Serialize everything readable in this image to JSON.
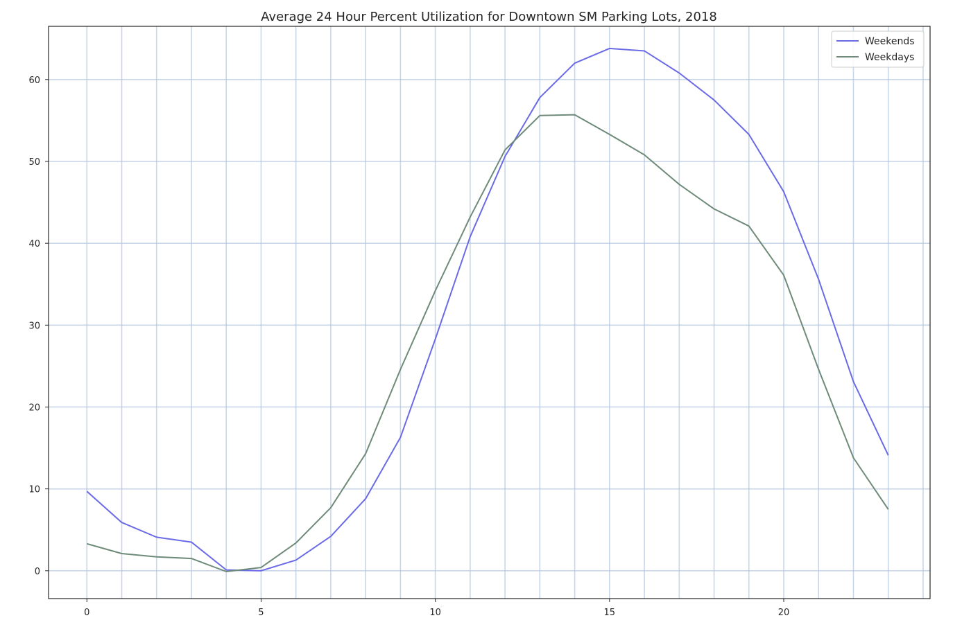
{
  "chart_data": {
    "type": "line",
    "title": "Average 24 Hour Percent Utilization for Downtown SM Parking Lots, 2018",
    "xlabel": "",
    "ylabel": "",
    "x": [
      0,
      1,
      2,
      3,
      4,
      5,
      6,
      7,
      8,
      9,
      10,
      11,
      12,
      13,
      14,
      15,
      16,
      17,
      18,
      19,
      20,
      21,
      22,
      23
    ],
    "xlim": [
      -1.1,
      24.2
    ],
    "ylim": [
      -3.4,
      66.5
    ],
    "x_ticks": [
      0,
      5,
      10,
      15,
      20
    ],
    "y_ticks": [
      0,
      10,
      20,
      30,
      40,
      50,
      60
    ],
    "x_grid": [
      0,
      1,
      2,
      3,
      4,
      5,
      6,
      7,
      8,
      9,
      10,
      11,
      12,
      13,
      14,
      15,
      16,
      17,
      18,
      19,
      20,
      21,
      22,
      23,
      24
    ],
    "y_grid": [
      0,
      10,
      20,
      30,
      40,
      50,
      60
    ],
    "grid": true,
    "legend_position": "top-right",
    "series": [
      {
        "name": "Weekends",
        "color": "#6a6ae6",
        "values": [
          9.7,
          5.9,
          4.1,
          3.5,
          0.1,
          0.0,
          1.3,
          4.2,
          8.8,
          16.3,
          28.3,
          40.8,
          50.6,
          57.8,
          62.0,
          63.8,
          63.5,
          60.8,
          57.5,
          53.3,
          46.3,
          35.6,
          23.1,
          14.1
        ]
      },
      {
        "name": "Weekdays",
        "color": "#6e8a79",
        "values": [
          3.3,
          2.1,
          1.7,
          1.5,
          -0.1,
          0.4,
          3.4,
          7.7,
          14.3,
          24.6,
          34.2,
          43.2,
          51.4,
          55.6,
          55.7,
          53.3,
          50.8,
          47.2,
          44.2,
          42.1,
          36.1,
          24.6,
          13.8,
          7.5
        ]
      }
    ]
  }
}
